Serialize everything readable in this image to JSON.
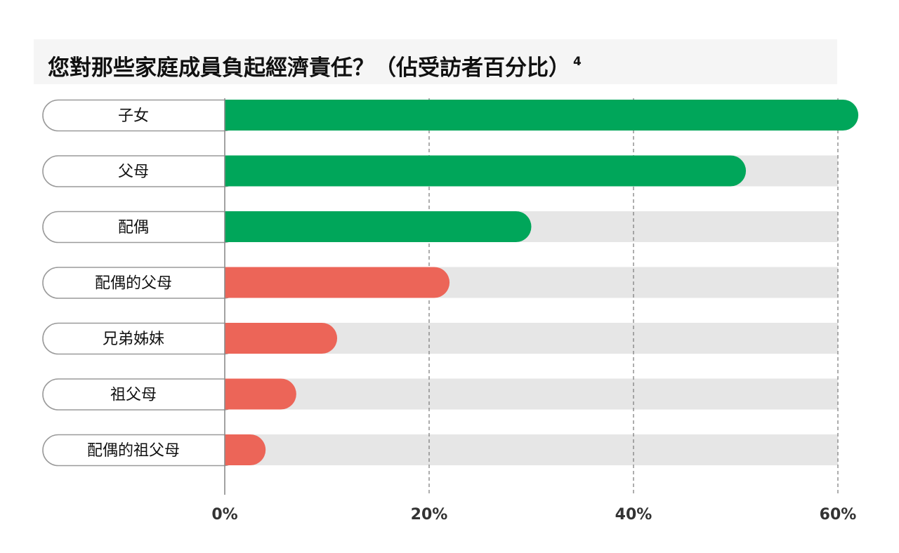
{
  "title": "您對那些家庭成員負起經濟責任？（佔受訪者百分比）",
  "title_footnote": "4",
  "colors": {
    "primary": "#00a65a",
    "secondary": "#ec6558",
    "track": "#e6e6e6",
    "title_background": "#f5f5f5"
  },
  "chart_data": {
    "type": "bar",
    "orientation": "horizontal",
    "categories": [
      "子女",
      "父母",
      "配偶",
      "配偶的父母",
      "兄弟姊妹",
      "祖父母",
      "配偶的祖父母"
    ],
    "values": [
      62,
      51,
      30,
      22,
      11,
      7,
      4
    ],
    "bar_colors": [
      "#00a65a",
      "#00a65a",
      "#00a65a",
      "#ec6558",
      "#ec6558",
      "#ec6558",
      "#ec6558"
    ],
    "xlim": [
      0,
      60
    ],
    "xticks": [
      "0%",
      "20%",
      "40%",
      "60%"
    ],
    "xtick_values": [
      0,
      20,
      40,
      60
    ],
    "grid": "vertical dashed",
    "xlabel": "",
    "ylabel": ""
  }
}
